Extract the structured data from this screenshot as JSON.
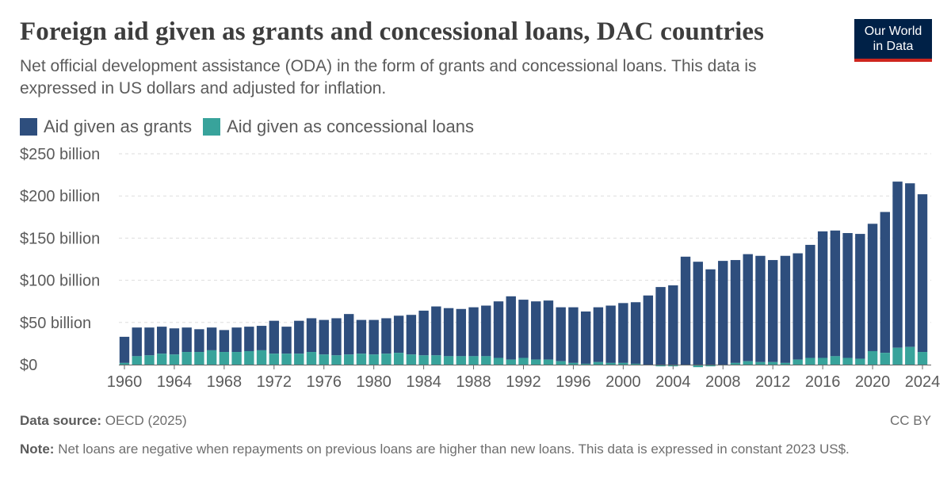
{
  "header": {
    "title": "Foreign aid given as grants and concessional loans, DAC countries",
    "subtitle": "Net official development assistance (ODA) in the form of grants and concessional loans. This data is expressed in US dollars and adjusted for inflation.",
    "logo_line1": "Our World",
    "logo_line2": "in Data"
  },
  "footer": {
    "source_label": "Data source:",
    "source_value": "OECD (2025)",
    "license": "CC BY",
    "note_label": "Note:",
    "note_value": "Net loans are negative when repayments on previous loans are higher than new loans. This data is expressed in constant 2023 US$."
  },
  "colors": {
    "grants": "#2e4e7d",
    "loans": "#38a39b",
    "grid": "#dddddd",
    "axis": "#666666"
  },
  "chart_data": {
    "type": "bar",
    "stacked": true,
    "x": [
      1960,
      1961,
      1962,
      1963,
      1964,
      1965,
      1966,
      1967,
      1968,
      1969,
      1970,
      1971,
      1972,
      1973,
      1974,
      1975,
      1976,
      1977,
      1978,
      1979,
      1980,
      1981,
      1982,
      1983,
      1984,
      1985,
      1986,
      1987,
      1988,
      1989,
      1990,
      1991,
      1992,
      1993,
      1994,
      1995,
      1996,
      1997,
      1998,
      1999,
      2000,
      2001,
      2002,
      2003,
      2004,
      2005,
      2006,
      2007,
      2008,
      2009,
      2010,
      2011,
      2012,
      2013,
      2014,
      2015,
      2016,
      2017,
      2018,
      2019,
      2020,
      2021,
      2022,
      2023,
      2024
    ],
    "series": [
      {
        "name": "Aid given as grants",
        "color": "#2e4e7d",
        "values": [
          31,
          34,
          33,
          32,
          31,
          29,
          27,
          27,
          26,
          29,
          29,
          29,
          39,
          32,
          39,
          40,
          41,
          44,
          48,
          40,
          41,
          42,
          44,
          47,
          53,
          58,
          57,
          56,
          58,
          60,
          67,
          75,
          69,
          69,
          70,
          64,
          66,
          62,
          65,
          68,
          71,
          73,
          82,
          92,
          94,
          128,
          122,
          113,
          123,
          122,
          127,
          126,
          121,
          127,
          126,
          134,
          150,
          149,
          148,
          148,
          151,
          167,
          197,
          194,
          187
        ],
        "prefix": "$",
        "suffix": " billion"
      },
      {
        "name": "Aid given as concessional loans",
        "color": "#38a39b",
        "values": [
          2,
          10,
          11,
          13,
          12,
          15,
          15,
          17,
          15,
          15,
          16,
          17,
          13,
          13,
          13,
          15,
          12,
          11,
          12,
          13,
          12,
          13,
          14,
          12,
          11,
          11,
          10,
          10,
          10,
          10,
          8,
          6,
          8,
          6,
          6,
          4,
          2,
          1,
          3,
          2,
          2,
          1,
          0,
          -2,
          -2,
          -1,
          -3,
          -2,
          -1,
          2,
          4,
          3,
          3,
          2,
          6,
          8,
          8,
          10,
          8,
          7,
          16,
          14,
          20,
          21,
          15
        ],
        "prefix": "$",
        "suffix": " billion"
      }
    ],
    "x_ticks": [
      "1960",
      "1964",
      "1968",
      "1972",
      "1976",
      "1980",
      "1984",
      "1988",
      "1992",
      "1996",
      "2000",
      "2004",
      "2008",
      "2012",
      "2016",
      "2020",
      "2024"
    ],
    "y_ticks": [
      0,
      50,
      100,
      150,
      200,
      250
    ],
    "y_tick_labels": [
      "$0",
      "$50 billion",
      "$100 billion",
      "$150 billion",
      "$200 billion",
      "$250 billion"
    ],
    "ylim": [
      -5,
      250
    ],
    "grid": "horizontal dashed",
    "legend": "top-left"
  }
}
